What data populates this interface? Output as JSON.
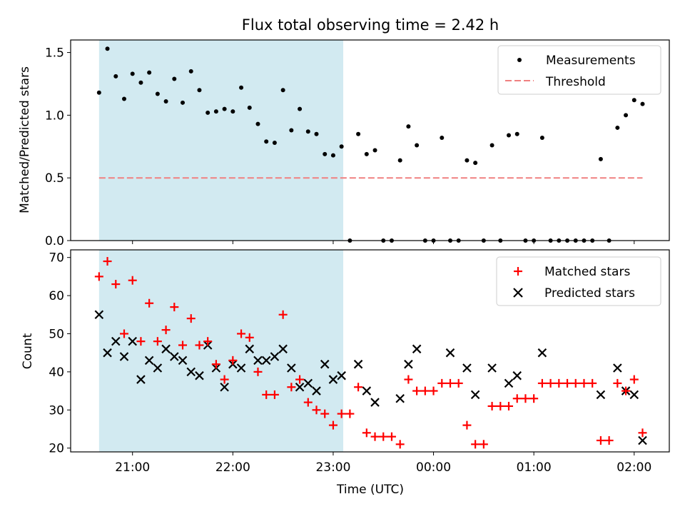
{
  "chart_data": [
    {
      "type": "scatter",
      "title": "Flux total observing time = 2.42 h",
      "xlabel": "",
      "ylabel": "Matched/Predicted stars",
      "ylim": [
        0,
        1.6
      ],
      "yticks": [
        "0.0",
        "0.5",
        "1.0",
        "1.5"
      ],
      "shaded_region": {
        "start": "20:40",
        "end": "23:06",
        "color": "#add8e6"
      },
      "threshold": 0.5,
      "legend_position": "top-right",
      "series": [
        {
          "name": "Measurements",
          "marker": "dot",
          "color": "#000000",
          "x": [
            "20:40",
            "20:45",
            "20:50",
            "20:55",
            "21:00",
            "21:05",
            "21:10",
            "21:15",
            "21:20",
            "21:25",
            "21:30",
            "21:35",
            "21:40",
            "21:45",
            "21:50",
            "21:55",
            "22:00",
            "22:05",
            "22:10",
            "22:15",
            "22:20",
            "22:25",
            "22:30",
            "22:35",
            "22:40",
            "22:45",
            "22:50",
            "22:55",
            "23:00",
            "23:05",
            "23:10",
            "23:15",
            "23:20",
            "23:25",
            "23:30",
            "23:35",
            "23:40",
            "23:45",
            "23:50",
            "23:55",
            "24:00",
            "24:05",
            "24:10",
            "24:15",
            "24:20",
            "24:25",
            "24:30",
            "24:35",
            "24:40",
            "24:45",
            "24:50",
            "24:55",
            "25:00",
            "25:05",
            "25:10",
            "25:15",
            "25:20",
            "25:25",
            "25:30",
            "25:35",
            "25:40",
            "25:45",
            "25:50",
            "25:55",
            "26:00",
            "26:05"
          ],
          "y": [
            1.18,
            1.53,
            1.31,
            1.13,
            1.33,
            1.26,
            1.34,
            1.17,
            1.11,
            1.29,
            1.1,
            1.35,
            1.2,
            1.02,
            1.03,
            1.05,
            1.03,
            1.22,
            1.06,
            0.93,
            0.79,
            0.78,
            1.2,
            0.88,
            1.05,
            0.87,
            0.85,
            0.69,
            0.68,
            0.75,
            0.0,
            0.85,
            0.69,
            0.72,
            0.0,
            0.0,
            0.64,
            0.91,
            0.76,
            0.0,
            0.0,
            0.82,
            0.0,
            0.0,
            0.64,
            0.62,
            0.0,
            0.76,
            0.0,
            0.84,
            0.85,
            0.0,
            0.0,
            0.82,
            0.0,
            0.0,
            0.0,
            0.0,
            0.0,
            0.0,
            0.65,
            0.0,
            0.9,
            1.0,
            1.12,
            1.09
          ]
        },
        {
          "name": "Threshold",
          "style": "dashed",
          "color": "#f08080",
          "x": [
            "20:40",
            "26:05"
          ],
          "y": [
            0.5,
            0.5
          ]
        }
      ]
    },
    {
      "type": "scatter",
      "title": "",
      "xlabel": "Time (UTC)",
      "ylabel": "Count",
      "ylim": [
        19,
        72
      ],
      "yticks": [
        "20",
        "30",
        "40",
        "50",
        "60",
        "70"
      ],
      "xticks": [
        "21:00",
        "22:00",
        "23:00",
        "00:00",
        "01:00",
        "02:00"
      ],
      "shaded_region": {
        "start": "20:40",
        "end": "23:06",
        "color": "#add8e6"
      },
      "legend_position": "top-right",
      "series": [
        {
          "name": "Matched stars",
          "marker": "plus",
          "color": "#ff0000",
          "x": [
            "20:40",
            "20:45",
            "20:50",
            "20:55",
            "21:00",
            "21:05",
            "21:10",
            "21:15",
            "21:20",
            "21:25",
            "21:30",
            "21:35",
            "21:40",
            "21:45",
            "21:50",
            "21:55",
            "22:00",
            "22:05",
            "22:10",
            "22:15",
            "22:20",
            "22:25",
            "22:30",
            "22:35",
            "22:40",
            "22:45",
            "22:50",
            "22:55",
            "23:00",
            "23:05",
            "23:10",
            "23:15",
            "23:20",
            "23:25",
            "23:30",
            "23:35",
            "23:40",
            "23:45",
            "23:50",
            "23:55",
            "24:00",
            "24:05",
            "24:10",
            "24:15",
            "24:20",
            "24:25",
            "24:30",
            "24:35",
            "24:40",
            "24:45",
            "24:50",
            "24:55",
            "25:00",
            "25:05",
            "25:10",
            "25:15",
            "25:20",
            "25:25",
            "25:30",
            "25:35",
            "25:40",
            "25:45",
            "25:50",
            "25:55",
            "26:00",
            "26:05"
          ],
          "y": [
            65,
            69,
            63,
            50,
            64,
            48,
            58,
            48,
            51,
            57,
            47,
            54,
            47,
            48,
            42,
            38,
            43,
            50,
            49,
            40,
            34,
            34,
            55,
            36,
            38,
            32,
            30,
            29,
            26,
            29,
            29,
            36,
            24,
            23,
            23,
            23,
            21,
            38,
            35,
            35,
            35,
            37,
            37,
            37,
            26,
            21,
            21,
            31,
            31,
            31,
            33,
            33,
            33,
            37,
            37,
            37,
            37,
            37,
            37,
            37,
            22,
            22,
            37,
            35,
            38,
            24
          ]
        },
        {
          "name": "Predicted stars",
          "marker": "x",
          "color": "#000000",
          "x": [
            "20:40",
            "20:45",
            "20:50",
            "20:55",
            "21:00",
            "21:05",
            "21:10",
            "21:15",
            "21:20",
            "21:25",
            "21:30",
            "21:35",
            "21:40",
            "21:45",
            "21:50",
            "21:55",
            "22:00",
            "22:05",
            "22:10",
            "22:15",
            "22:20",
            "22:25",
            "22:30",
            "22:35",
            "22:40",
            "22:45",
            "22:50",
            "22:55",
            "23:00",
            "23:05",
            "23:15",
            "23:20",
            "23:25",
            "23:40",
            "23:45",
            "23:50",
            "24:10",
            "24:20",
            "24:25",
            "24:35",
            "24:45",
            "24:50",
            "25:05",
            "25:40",
            "25:50",
            "25:55",
            "26:00",
            "26:05"
          ],
          "y": [
            55,
            45,
            48,
            44,
            48,
            38,
            43,
            41,
            46,
            44,
            43,
            40,
            39,
            47,
            41,
            36,
            42,
            41,
            46,
            43,
            43,
            44,
            46,
            41,
            36,
            37,
            35,
            42,
            38,
            39,
            42,
            35,
            32,
            33,
            42,
            46,
            45,
            41,
            34,
            41,
            37,
            39,
            45,
            34,
            41,
            35,
            34,
            22
          ]
        }
      ]
    }
  ]
}
